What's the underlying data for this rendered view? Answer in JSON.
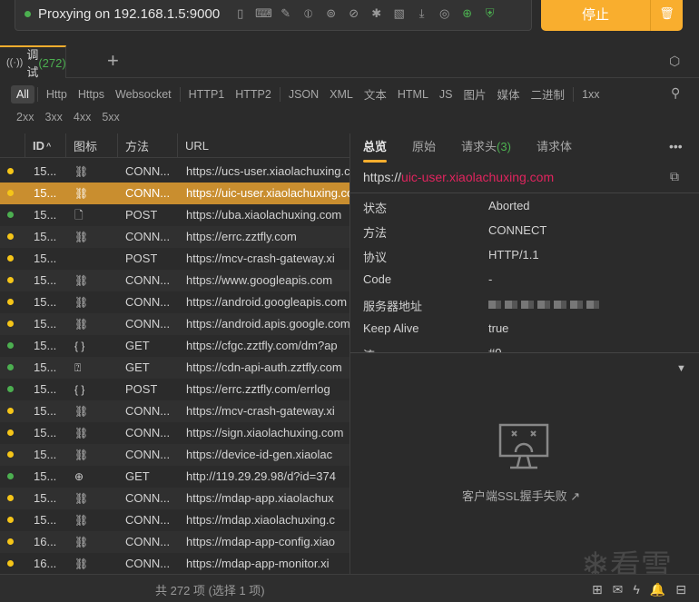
{
  "toolbar": {
    "status_text": "Proxying on 192.168.1.5:9000",
    "status_color": "#4caf50",
    "icons": [
      "phone-icon",
      "terminal-icon",
      "pencil-icon",
      "breakpoint-icon",
      "ssl-icon",
      "no-proxy-icon",
      "debug-off-icon",
      "no-cache-icon",
      "download-icon",
      "throttle-icon",
      "globe-icon",
      "shield-icon"
    ],
    "stop_label": "停止",
    "accent": "#f9ae2e"
  },
  "tabs": {
    "label": "调试",
    "count": "(272)",
    "add": "+"
  },
  "filters": {
    "row1": [
      "All",
      "Http",
      "Https",
      "Websocket",
      "HTTP1",
      "HTTP2",
      "JSON",
      "XML",
      "文本",
      "HTML",
      "JS",
      "图片",
      "媒体",
      "二进制",
      "1xx"
    ],
    "row2": [
      "2xx",
      "3xx",
      "4xx",
      "5xx"
    ]
  },
  "table": {
    "headers": {
      "id": "ID",
      "icon": "图标",
      "method": "方法",
      "url": "URL"
    },
    "rows": [
      {
        "status": "yellow",
        "id": "15...",
        "icon": "link-off",
        "method": "CONN...",
        "url": "https://ucs-user.xiaolachuxing.com"
      },
      {
        "status": "yellow",
        "id": "15...",
        "icon": "link-off",
        "method": "CONN...",
        "url": "https://uic-user.xiaolachuxing.com",
        "selected": true
      },
      {
        "status": "green",
        "id": "15...",
        "icon": "file",
        "method": "POST",
        "url": "https://uba.xiaolachuxing.com"
      },
      {
        "status": "yellow",
        "id": "15...",
        "icon": "link-off",
        "method": "CONN...",
        "url": "https://errc.zztfly.com"
      },
      {
        "status": "yellow",
        "id": "15...",
        "icon": "",
        "method": "POST",
        "url": "https://mcv-crash-gateway.xi"
      },
      {
        "status": "yellow",
        "id": "15...",
        "icon": "link-off",
        "method": "CONN...",
        "url": "https://www.googleapis.com"
      },
      {
        "status": "yellow",
        "id": "15...",
        "icon": "link-off",
        "method": "CONN...",
        "url": "https://android.googleapis.com"
      },
      {
        "status": "yellow",
        "id": "15...",
        "icon": "link-off",
        "method": "CONN...",
        "url": "https://android.apis.google.com"
      },
      {
        "status": "green",
        "id": "15...",
        "icon": "json",
        "method": "GET",
        "url": "https://cfgc.zztfly.com/dm?ap"
      },
      {
        "status": "green",
        "id": "15...",
        "icon": "unknown-file",
        "method": "GET",
        "url": "https://cdn-api-auth.zztfly.com"
      },
      {
        "status": "green",
        "id": "15...",
        "icon": "json",
        "method": "POST",
        "url": "https://errc.zztfly.com/errlog"
      },
      {
        "status": "yellow",
        "id": "15...",
        "icon": "link-off",
        "method": "CONN...",
        "url": "https://mcv-crash-gateway.xi"
      },
      {
        "status": "yellow",
        "id": "15...",
        "icon": "link-off",
        "method": "CONN...",
        "url": "https://sign.xiaolachuxing.com"
      },
      {
        "status": "yellow",
        "id": "15...",
        "icon": "link-off",
        "method": "CONN...",
        "url": "https://device-id-gen.xiaolac"
      },
      {
        "status": "green",
        "id": "15...",
        "icon": "globe",
        "method": "GET",
        "url": "http://119.29.29.98/d?id=374"
      },
      {
        "status": "yellow",
        "id": "15...",
        "icon": "link-off",
        "method": "CONN...",
        "url": "https://mdap-app.xiaolachux"
      },
      {
        "status": "yellow",
        "id": "15...",
        "icon": "link-off",
        "method": "CONN...",
        "url": "https://mdap.xiaolachuxing.c"
      },
      {
        "status": "yellow",
        "id": "16...",
        "icon": "link-off",
        "method": "CONN...",
        "url": "https://mdap-app-config.xiao"
      },
      {
        "status": "yellow",
        "id": "16...",
        "icon": "link-off",
        "method": "CONN...",
        "url": "https://mdap-app-monitor.xi"
      }
    ]
  },
  "detail": {
    "tabs": [
      "总览",
      "原始",
      "请求头",
      "请求体"
    ],
    "headers_count": "(3)",
    "url_scheme": "https://",
    "url_host": "uic-user.xiaolachuxing.com",
    "fields": [
      {
        "k": "状态",
        "v": "Aborted"
      },
      {
        "k": "方法",
        "v": "CONNECT"
      },
      {
        "k": "协议",
        "v": "HTTP/1.1"
      },
      {
        "k": "Code",
        "v": "-"
      },
      {
        "k": "服务器地址",
        "v": ""
      },
      {
        "k": "Keep Alive",
        "v": "true"
      },
      {
        "k": "流",
        "v": "#0"
      }
    ],
    "error_message": "客户端SSL握手失败"
  },
  "footer": {
    "summary": "共 272 项 (选择 1 项)"
  },
  "watermark": "看雪"
}
